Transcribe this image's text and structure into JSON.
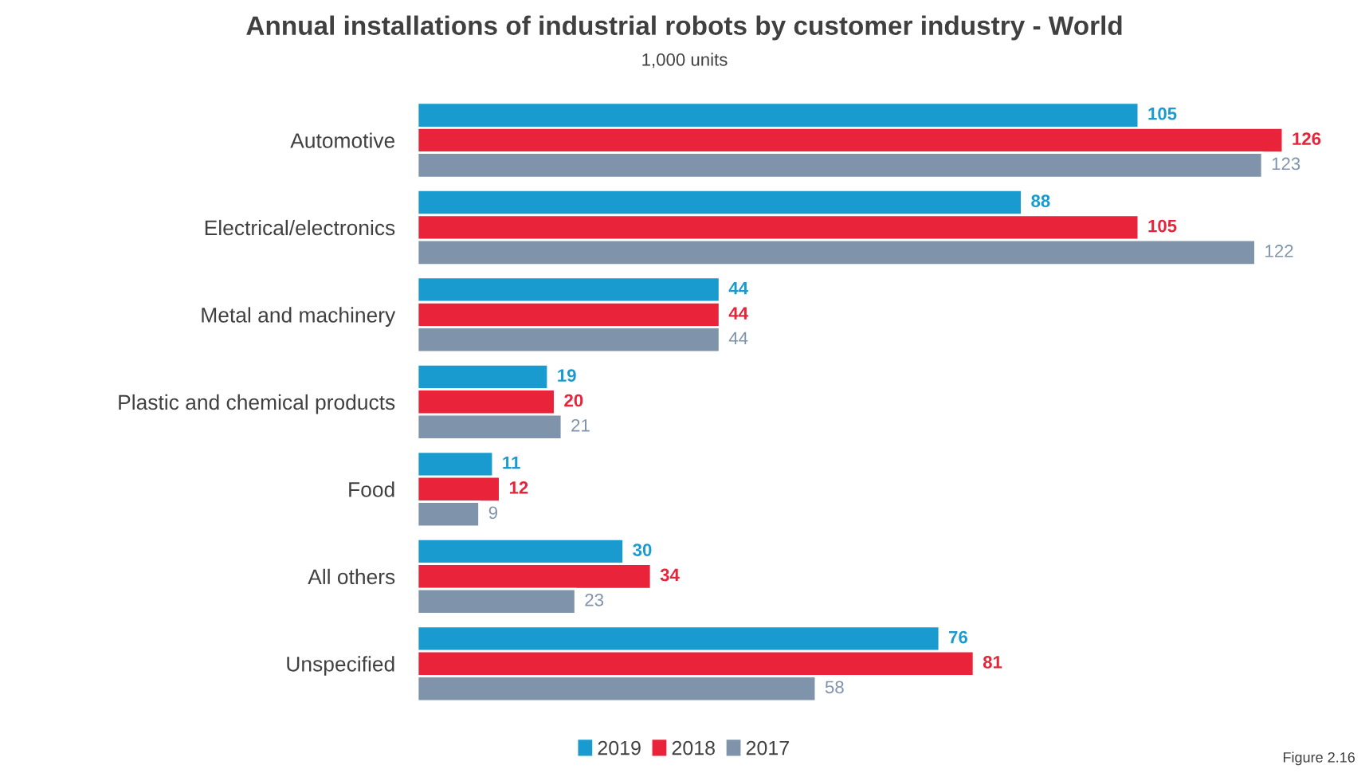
{
  "chart_data": {
    "type": "bar",
    "orientation": "horizontal",
    "title": "Annual installations of industrial robots by customer industry - World",
    "subtitle": "1,000 units",
    "categories": [
      "Automotive",
      "Electrical/electronics",
      "Metal and machinery",
      "Plastic and chemical products",
      "Food",
      "All others",
      "Unspecified"
    ],
    "series": [
      {
        "name": "2019",
        "color": "#1a9bd0",
        "values": [
          105,
          88,
          44,
          19,
          11,
          30,
          76
        ]
      },
      {
        "name": "2018",
        "color": "#e8233a",
        "values": [
          126,
          105,
          44,
          20,
          12,
          34,
          81
        ]
      },
      {
        "name": "2017",
        "color": "#7f93ab",
        "values": [
          123,
          122,
          44,
          21,
          9,
          23,
          58
        ]
      }
    ],
    "data_labels": true,
    "legend": "bottom",
    "grid": false,
    "tick_labels": "y",
    "annotations": [
      "Figure 2.16"
    ]
  }
}
